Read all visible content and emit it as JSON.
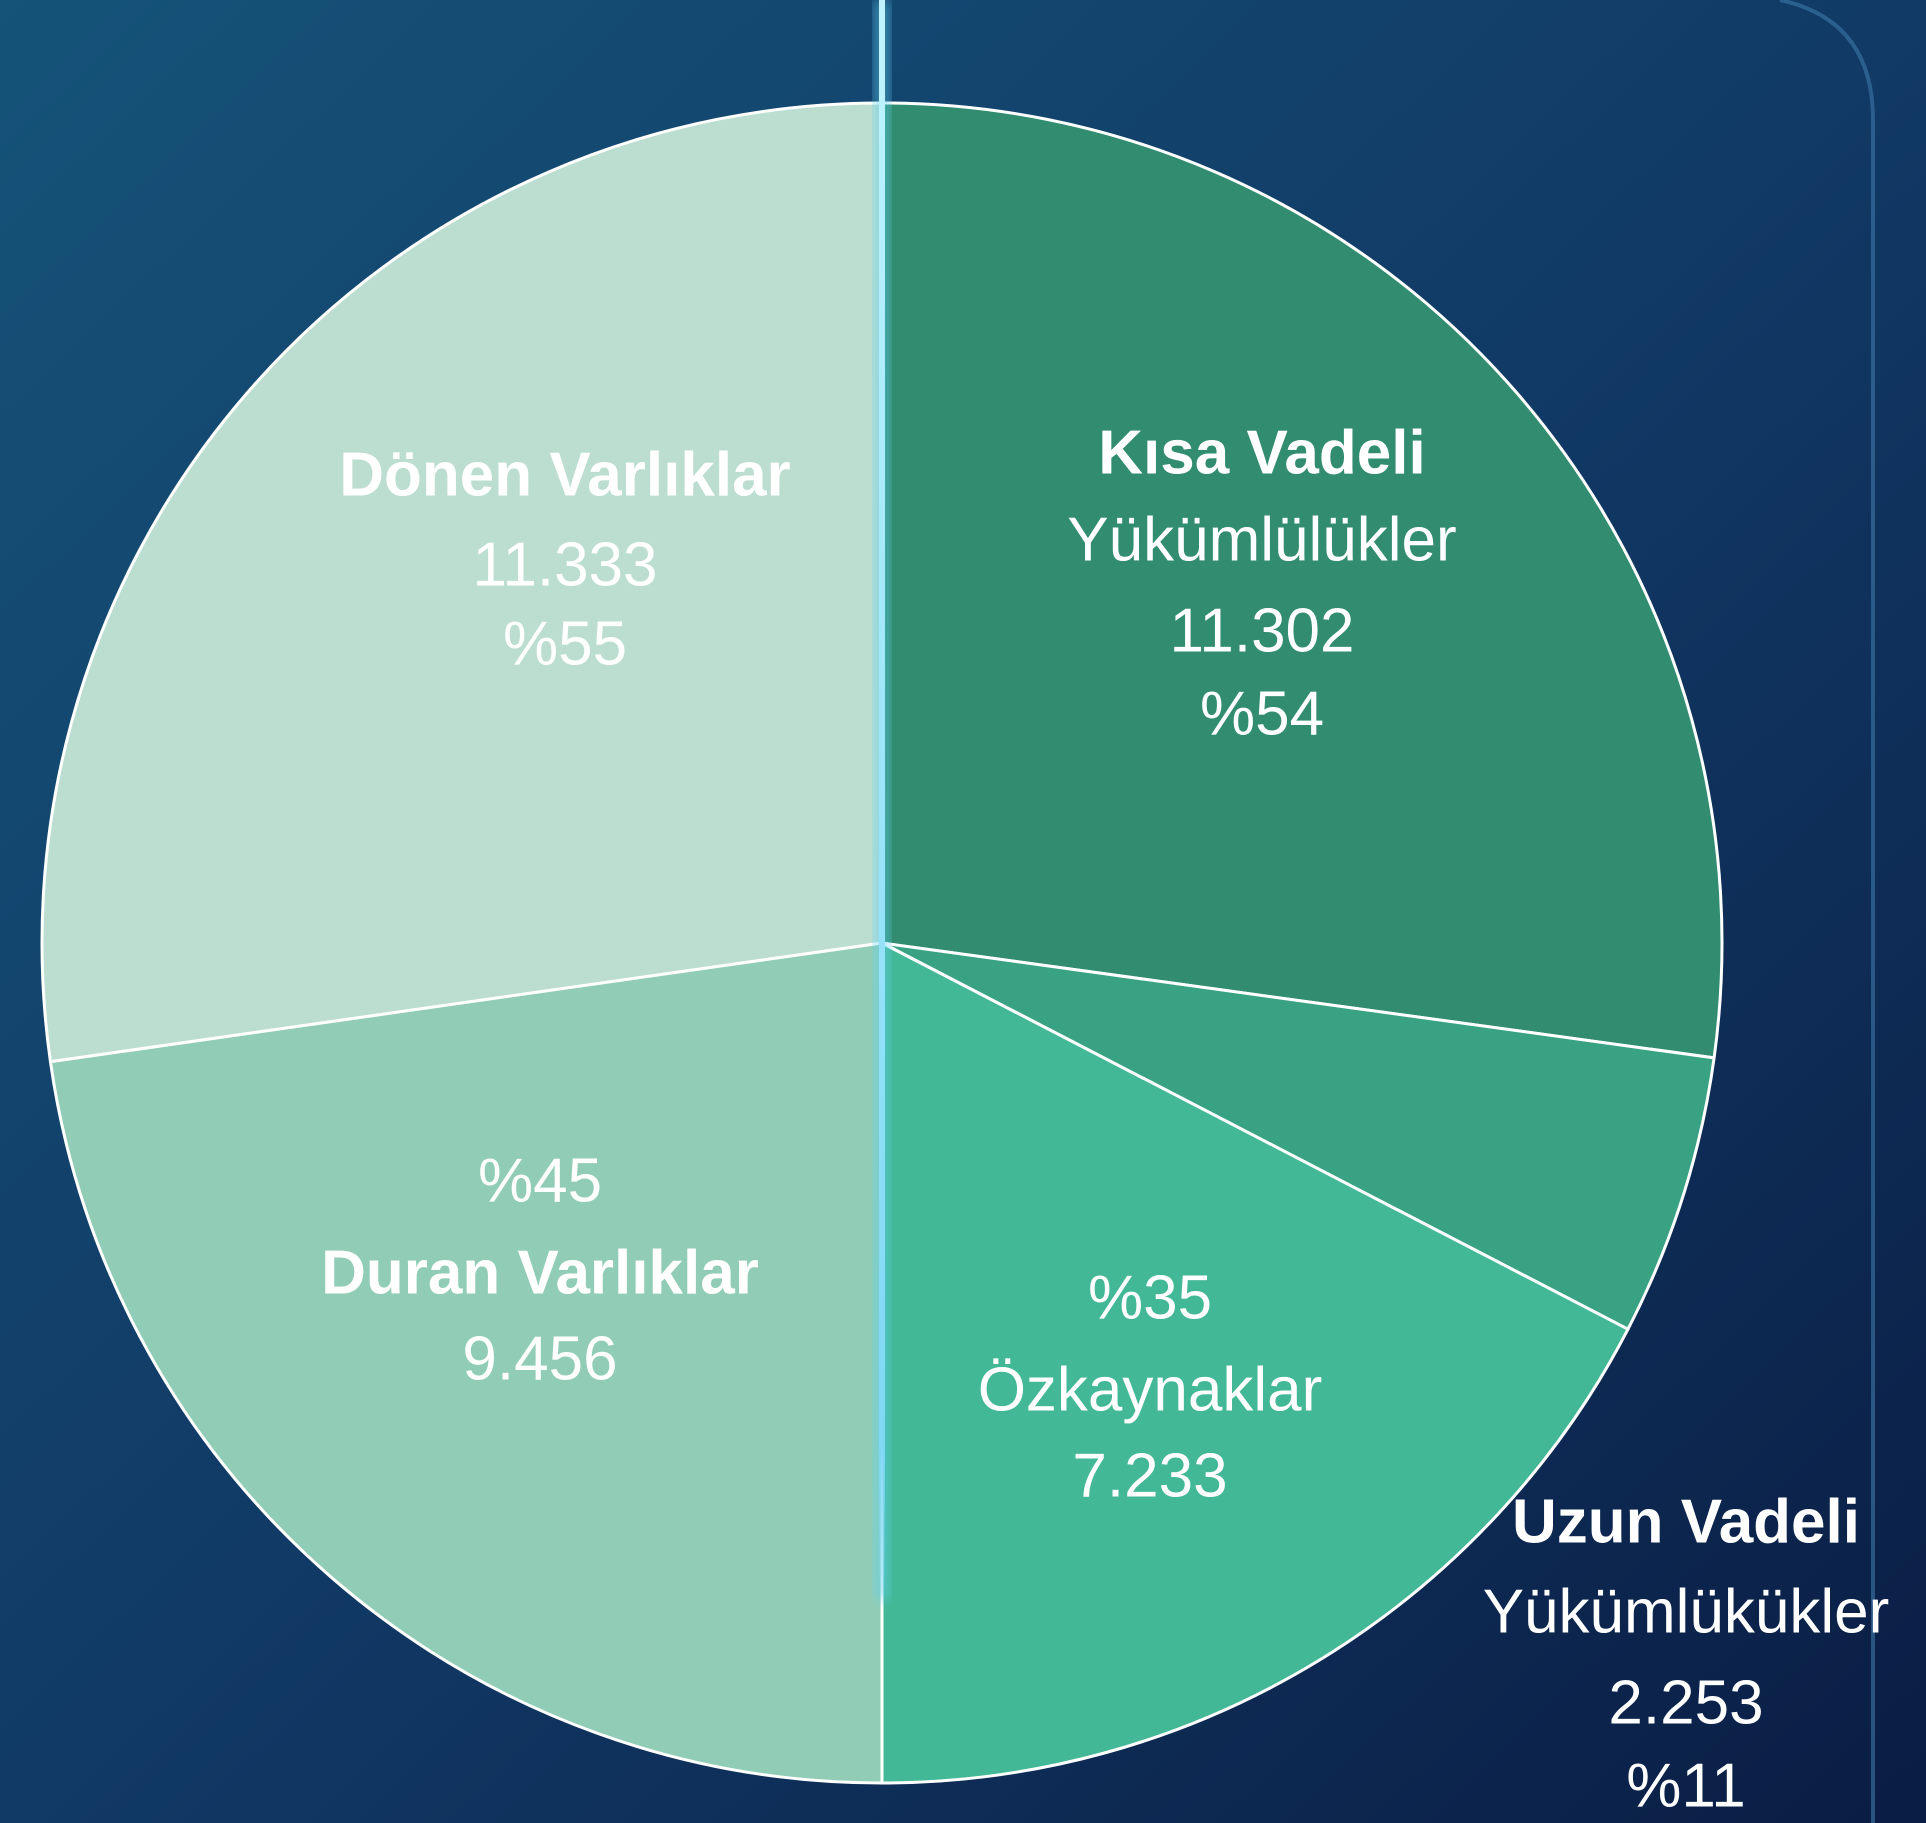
{
  "chart_data": [
    {
      "type": "pie",
      "categories": [
        [
          "Dönen Varlıklar"
        ],
        [
          "Duran Varlıklar"
        ]
      ],
      "values": [
        11333,
        9456
      ],
      "value_labels": [
        "11.333",
        "9.456"
      ],
      "percent_labels": [
        "%55",
        "%45"
      ],
      "colors": [
        "#bcded1",
        "#91cdb6"
      ]
    },
    {
      "type": "pie",
      "categories": [
        [
          "Kısa Vadeli",
          "Yükümlülükler"
        ],
        [
          "Uzun Vadeli",
          "Yükümlükükler"
        ],
        [
          "Özkaynaklar"
        ]
      ],
      "values": [
        11302,
        2253,
        7233
      ],
      "value_labels": [
        "11.302",
        "2.253",
        "7.233"
      ],
      "percent_labels": [
        "%54",
        "%11",
        "%35"
      ],
      "colors": [
        "#318c70",
        "#38a283",
        "#43b896"
      ]
    }
  ]
}
